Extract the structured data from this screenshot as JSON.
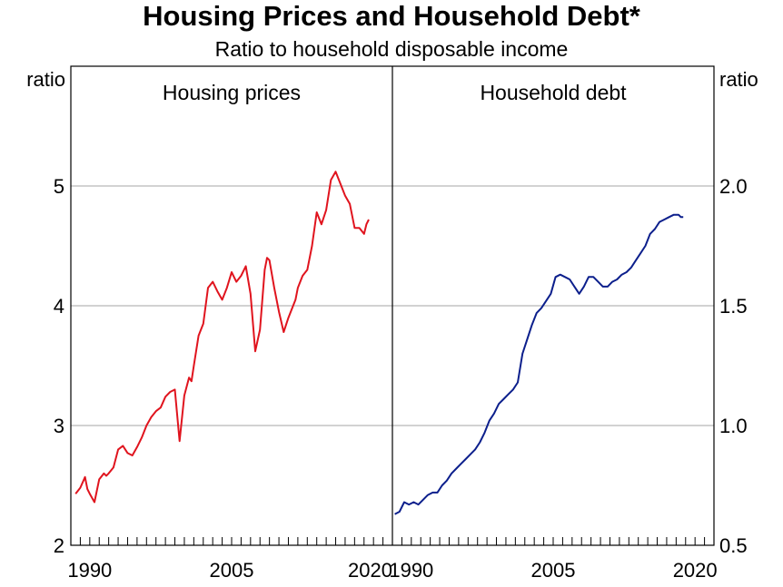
{
  "title": "Housing Prices and Household Debt*",
  "subtitle": "Ratio to household disposable income",
  "chart_data": [
    {
      "type": "line",
      "panel_title": "Housing prices",
      "ylabel": "ratio",
      "y_axis_side": "left",
      "ylim": [
        2,
        6
      ],
      "yticks": [
        2,
        3,
        4,
        5
      ],
      "ytick_labels": [
        "2",
        "3",
        "4",
        "5"
      ],
      "xlim": [
        1988,
        2022
      ],
      "xticks": [
        1990,
        2005,
        2020
      ],
      "xtick_labels": [
        "1990",
        "2005",
        "2020"
      ],
      "grid": true,
      "line_color": "#e0141e",
      "x": [
        1988.5,
        1989.0,
        1989.5,
        1989.75,
        1990.0,
        1990.5,
        1991.0,
        1991.5,
        1991.75,
        1992.0,
        1992.5,
        1993.0,
        1993.5,
        1994.0,
        1994.5,
        1995.0,
        1995.5,
        1996.0,
        1996.5,
        1997.0,
        1997.5,
        1998.0,
        1998.5,
        1999.0,
        1999.5,
        2000.0,
        2000.5,
        2000.75,
        2001.0,
        2001.5,
        2002.0,
        2002.5,
        2003.0,
        2003.5,
        2004.0,
        2004.5,
        2005.0,
        2005.5,
        2006.0,
        2006.5,
        2007.0,
        2007.5,
        2008.0,
        2008.5,
        2008.75,
        2009.0,
        2009.5,
        2010.0,
        2010.5,
        2011.0,
        2011.5,
        2011.75,
        2012.0,
        2012.5,
        2013.0,
        2013.5,
        2014.0,
        2014.5,
        2015.0,
        2015.5,
        2016.0,
        2016.5,
        2017.0,
        2017.5,
        2018.0,
        2018.5,
        2019.0,
        2019.25,
        2019.5
      ],
      "values": [
        2.43,
        2.48,
        2.57,
        2.47,
        2.43,
        2.36,
        2.55,
        2.6,
        2.58,
        2.6,
        2.65,
        2.8,
        2.83,
        2.77,
        2.75,
        2.82,
        2.9,
        3.0,
        3.07,
        3.12,
        3.15,
        3.24,
        3.28,
        3.3,
        2.87,
        3.25,
        3.4,
        3.37,
        3.5,
        3.75,
        3.85,
        4.15,
        4.2,
        4.12,
        4.05,
        4.15,
        4.28,
        4.2,
        4.25,
        4.33,
        4.1,
        3.62,
        3.8,
        4.3,
        4.4,
        4.38,
        4.15,
        3.95,
        3.78,
        3.9,
        4.0,
        4.05,
        4.15,
        4.25,
        4.3,
        4.5,
        4.78,
        4.68,
        4.8,
        5.05,
        5.12,
        5.02,
        4.92,
        4.85,
        4.65,
        4.65,
        4.6,
        4.68,
        4.72
      ]
    },
    {
      "type": "line",
      "panel_title": "Household debt",
      "ylabel": "ratio",
      "y_axis_side": "right",
      "ylim": [
        0.5,
        2.5
      ],
      "yticks": [
        0.5,
        1.0,
        1.5,
        2.0
      ],
      "ytick_labels": [
        "0.5",
        "1.0",
        "1.5",
        "2.0"
      ],
      "xlim": [
        1988,
        2022
      ],
      "xticks": [
        1990,
        2005,
        2020
      ],
      "xtick_labels": [
        "1990",
        "2005",
        "2020"
      ],
      "grid": true,
      "line_color": "#0c1f8c",
      "x": [
        1988.25,
        1988.75,
        1989.25,
        1989.75,
        1990.25,
        1990.75,
        1991.25,
        1991.75,
        1992.25,
        1992.75,
        1993.25,
        1993.75,
        1994.25,
        1994.75,
        1995.25,
        1995.75,
        1996.25,
        1996.75,
        1997.25,
        1997.75,
        1998.25,
        1998.75,
        1999.25,
        1999.75,
        2000.25,
        2000.75,
        2001.25,
        2001.75,
        2002.25,
        2002.75,
        2003.25,
        2003.75,
        2004.25,
        2004.75,
        2005.25,
        2005.75,
        2006.25,
        2006.75,
        2007.25,
        2007.75,
        2008.25,
        2008.75,
        2009.25,
        2009.75,
        2010.25,
        2010.75,
        2011.25,
        2011.75,
        2012.25,
        2012.75,
        2013.25,
        2013.75,
        2014.25,
        2014.75,
        2015.25,
        2015.75,
        2016.25,
        2016.75,
        2017.25,
        2017.75,
        2018.25,
        2018.5,
        2018.75
      ],
      "values": [
        0.63,
        0.64,
        0.68,
        0.67,
        0.68,
        0.67,
        0.69,
        0.71,
        0.72,
        0.72,
        0.75,
        0.77,
        0.8,
        0.82,
        0.84,
        0.86,
        0.88,
        0.9,
        0.93,
        0.97,
        1.02,
        1.05,
        1.09,
        1.11,
        1.13,
        1.15,
        1.18,
        1.3,
        1.36,
        1.42,
        1.47,
        1.49,
        1.52,
        1.55,
        1.62,
        1.63,
        1.62,
        1.61,
        1.58,
        1.55,
        1.58,
        1.62,
        1.62,
        1.6,
        1.58,
        1.58,
        1.6,
        1.61,
        1.63,
        1.64,
        1.66,
        1.69,
        1.72,
        1.75,
        1.8,
        1.82,
        1.85,
        1.86,
        1.87,
        1.88,
        1.88,
        1.87,
        1.87
      ]
    }
  ]
}
